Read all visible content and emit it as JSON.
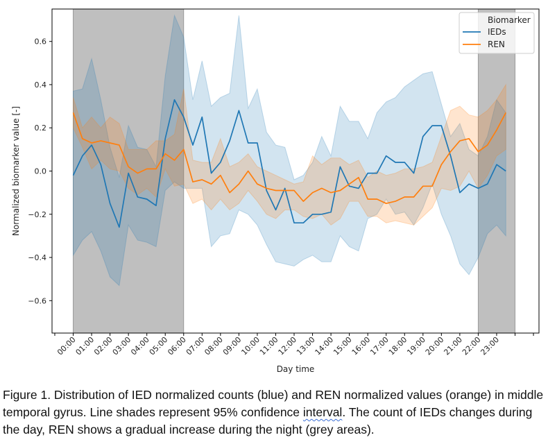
{
  "chart_data": {
    "type": "line",
    "title": "",
    "xlabel": "Day time",
    "ylabel": "Normalized biomarker value [-]",
    "xlim_hours": [
      -1.15,
      25.3
    ],
    "ylim": [
      -0.75,
      0.75
    ],
    "grid": false,
    "x_tick_labels": [
      "00:00",
      "01:00",
      "02:00",
      "03:00",
      "04:00",
      "05:00",
      "06:00",
      "07:00",
      "08:00",
      "09:00",
      "10:00",
      "11:00",
      "12:00",
      "13:00",
      "14:00",
      "15:00",
      "16:00",
      "17:00",
      "18:00",
      "19:00",
      "20:00",
      "21:00",
      "22:00",
      "23:00"
    ],
    "y_ticks": [
      -0.6,
      -0.4,
      -0.2,
      0.0,
      0.2,
      0.4,
      0.6
    ],
    "y_tick_labels": [
      "−0.6",
      "−0.4",
      "−0.2",
      "0.0",
      "0.2",
      "0.4",
      "0.6"
    ],
    "x_step_hours": 0.5,
    "night_shading": [
      {
        "start_hour": 0,
        "end_hour": 6,
        "color": "#808080"
      },
      {
        "start_hour": 22,
        "end_hour": 24,
        "color": "#808080"
      }
    ],
    "legend": {
      "title": "Biomarker",
      "placement": "top-right",
      "entries": [
        "IEDs",
        "REN"
      ]
    },
    "series": [
      {
        "name": "IEDs",
        "color": "#1f77b4",
        "values": [
          -0.02,
          0.07,
          0.12,
          0.03,
          -0.15,
          -0.26,
          -0.01,
          -0.12,
          -0.13,
          -0.16,
          0.15,
          0.33,
          0.25,
          0.12,
          0.25,
          -0.01,
          0.04,
          0.14,
          0.28,
          0.13,
          0.13,
          -0.09,
          -0.18,
          -0.08,
          -0.24,
          -0.24,
          -0.2,
          -0.2,
          -0.19,
          0.02,
          -0.07,
          -0.08,
          -0.01,
          -0.01,
          0.07,
          0.04,
          0.04,
          -0.01,
          0.16,
          0.21,
          0.21,
          0.07,
          -0.1,
          -0.06,
          -0.08,
          -0.06,
          0.03,
          0.0
        ],
        "ci_upper": [
          0.37,
          0.38,
          0.52,
          0.33,
          0.11,
          -0.03,
          0.21,
          0.11,
          0.1,
          0.02,
          0.44,
          0.72,
          0.62,
          0.33,
          0.51,
          0.3,
          0.34,
          0.36,
          0.72,
          0.29,
          0.38,
          0.18,
          0.12,
          0.11,
          -0.04,
          -0.02,
          0.04,
          0.16,
          0.07,
          0.3,
          0.23,
          0.23,
          0.15,
          0.27,
          0.32,
          0.34,
          0.39,
          0.42,
          0.45,
          0.46,
          0.31,
          0.16,
          0.22,
          0.1,
          0.07,
          0.16,
          0.33,
          0.27
        ],
        "ci_lower": [
          -0.39,
          -0.32,
          -0.28,
          -0.37,
          -0.49,
          -0.53,
          -0.25,
          -0.32,
          -0.33,
          -0.35,
          -0.09,
          -0.05,
          -0.08,
          -0.08,
          -0.08,
          -0.35,
          -0.3,
          -0.29,
          -0.18,
          -0.2,
          -0.25,
          -0.34,
          -0.42,
          -0.43,
          -0.44,
          -0.41,
          -0.39,
          -0.42,
          -0.42,
          -0.3,
          -0.35,
          -0.37,
          -0.22,
          -0.2,
          -0.13,
          -0.2,
          -0.19,
          -0.25,
          -0.17,
          -0.06,
          -0.2,
          -0.3,
          -0.43,
          -0.48,
          -0.4,
          -0.29,
          -0.25,
          -0.3
        ]
      },
      {
        "name": "REN",
        "color": "#ff7f0e",
        "values": [
          0.27,
          0.15,
          0.13,
          0.14,
          0.13,
          0.12,
          0.02,
          -0.01,
          0.01,
          0.01,
          0.08,
          0.05,
          0.1,
          -0.05,
          -0.04,
          -0.06,
          -0.02,
          -0.1,
          -0.06,
          0.0,
          -0.06,
          -0.08,
          -0.09,
          -0.09,
          -0.09,
          -0.14,
          -0.1,
          -0.08,
          -0.1,
          -0.09,
          -0.06,
          -0.03,
          -0.13,
          -0.13,
          -0.15,
          -0.14,
          -0.12,
          -0.12,
          -0.07,
          -0.07,
          0.03,
          0.09,
          0.14,
          0.15,
          0.09,
          0.12,
          0.19,
          0.27
        ],
        "ci_upper": [
          0.34,
          0.2,
          0.25,
          0.2,
          0.25,
          0.22,
          0.1,
          0.1,
          0.1,
          0.14,
          0.14,
          0.17,
          0.38,
          0.05,
          0.04,
          0.04,
          0.15,
          0.02,
          0.04,
          0.08,
          0.02,
          0.0,
          -0.02,
          -0.04,
          -0.06,
          -0.05,
          0.07,
          0.03,
          0.06,
          0.06,
          0.03,
          0.05,
          -0.03,
          0.0,
          -0.02,
          -0.01,
          0.01,
          0.01,
          0.02,
          0.04,
          0.16,
          0.28,
          0.3,
          0.26,
          0.25,
          0.28,
          0.33,
          0.4
        ],
        "ci_lower": [
          0.2,
          0.11,
          0.01,
          0.05,
          0.01,
          0.0,
          -0.08,
          -0.11,
          -0.08,
          -0.12,
          0.01,
          -0.07,
          -0.06,
          -0.15,
          -0.13,
          -0.18,
          -0.13,
          -0.18,
          -0.15,
          -0.09,
          -0.14,
          -0.2,
          -0.22,
          -0.18,
          -0.18,
          -0.21,
          -0.22,
          -0.2,
          -0.25,
          -0.22,
          -0.14,
          -0.14,
          -0.21,
          -0.21,
          -0.24,
          -0.23,
          -0.24,
          -0.25,
          -0.21,
          -0.17,
          -0.08,
          -0.09,
          -0.07,
          0.0,
          -0.08,
          -0.02,
          0.07,
          0.1
        ]
      }
    ]
  },
  "caption": {
    "part1": "Figure 1. Distribution of IED normalized counts (blue) and REN normalized values (orange) in middle temporal gyrus. Line shades represent 95% confidence ",
    "flagged_word": "interval",
    "part2": ". The count of IEDs changes during the day, REN shows a gradual increase during the night (grey areas)."
  }
}
